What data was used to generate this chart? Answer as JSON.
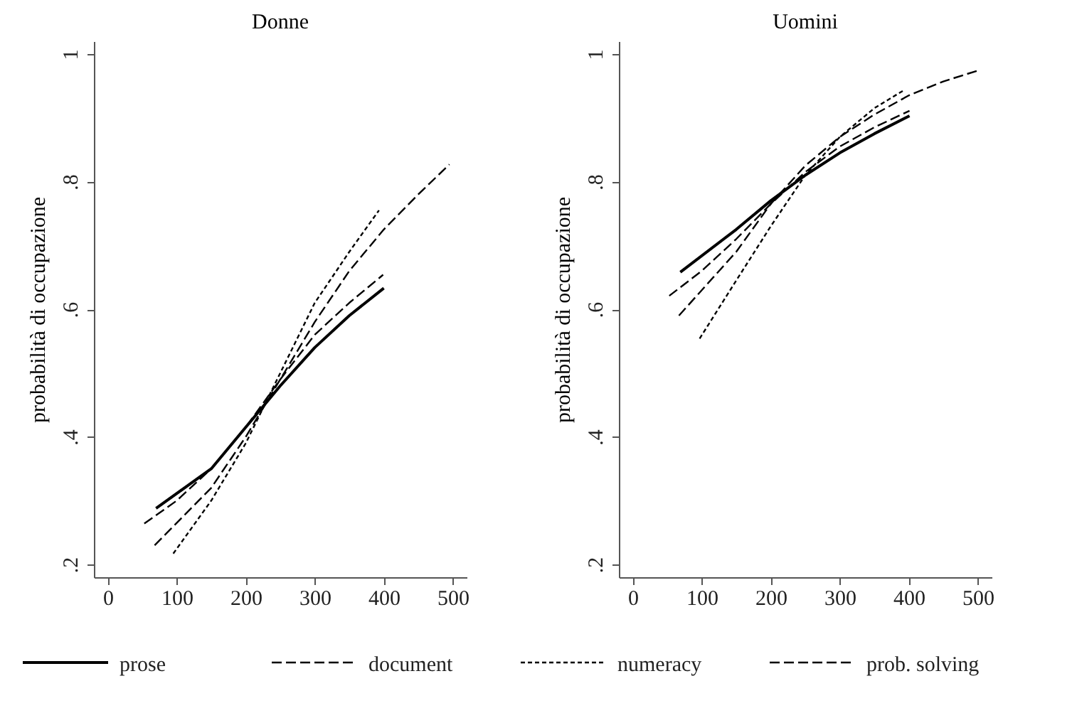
{
  "chart_data": [
    {
      "type": "line",
      "title": "Donne",
      "ylabel": "probabilità di occupazione",
      "xlim": [
        -20,
        520
      ],
      "xticks": [
        0,
        100,
        200,
        300,
        400,
        500
      ],
      "ylim": [
        0.18,
        1.02
      ],
      "yticks": [
        {
          "value": 0.2,
          "label": ".2"
        },
        {
          "value": 0.4,
          "label": ".4"
        },
        {
          "value": 0.6,
          "label": ".6"
        },
        {
          "value": 0.8,
          "label": ".8"
        },
        {
          "value": 1,
          "label": "1"
        }
      ],
      "grid": false,
      "legend": "bottom",
      "series": [
        {
          "name": "prose",
          "color": "#000000",
          "line_style": "solid",
          "x": [
            70,
            150,
            200,
            250,
            300,
            350,
            400
          ],
          "values": [
            0.288,
            0.35,
            0.415,
            0.48,
            0.54,
            0.59,
            0.633
          ]
        },
        {
          "name": "document",
          "color": "#000000",
          "line_style": "dashed",
          "x": [
            53,
            100,
            150,
            200,
            250,
            300,
            350,
            399
          ],
          "values": [
            0.264,
            0.3,
            0.35,
            0.415,
            0.49,
            0.56,
            0.61,
            0.654
          ]
        },
        {
          "name": "numeracy",
          "color": "#000000",
          "line_style": "dotted",
          "x": [
            95,
            150,
            200,
            250,
            300,
            350,
            393
          ],
          "values": [
            0.217,
            0.3,
            0.39,
            0.5,
            0.61,
            0.69,
            0.755
          ]
        },
        {
          "name": "prob. solving",
          "color": "#000000",
          "line_style": "dashed",
          "x": [
            68,
            150,
            200,
            250,
            300,
            350,
            400,
            450,
            495
          ],
          "values": [
            0.23,
            0.32,
            0.4,
            0.49,
            0.58,
            0.66,
            0.725,
            0.78,
            0.827
          ]
        }
      ]
    },
    {
      "type": "line",
      "title": "Uomini",
      "ylabel": "probabilità di occupazione",
      "xlim": [
        -20,
        520
      ],
      "xticks": [
        0,
        100,
        200,
        300,
        400,
        500
      ],
      "ylim": [
        0.18,
        1.02
      ],
      "yticks": [
        {
          "value": 0.2,
          "label": ".2"
        },
        {
          "value": 0.4,
          "label": ".4"
        },
        {
          "value": 0.6,
          "label": ".6"
        },
        {
          "value": 0.8,
          "label": ".8"
        },
        {
          "value": 1,
          "label": "1"
        }
      ],
      "grid": false,
      "legend": "bottom",
      "series": [
        {
          "name": "prose",
          "color": "#000000",
          "line_style": "solid",
          "x": [
            69,
            150,
            200,
            250,
            300,
            350,
            401
          ],
          "values": [
            0.658,
            0.725,
            0.77,
            0.81,
            0.845,
            0.875,
            0.903
          ]
        },
        {
          "name": "document",
          "color": "#000000",
          "line_style": "dashed",
          "x": [
            53,
            100,
            150,
            200,
            250,
            300,
            350,
            401
          ],
          "values": [
            0.621,
            0.66,
            0.71,
            0.765,
            0.815,
            0.855,
            0.885,
            0.911
          ]
        },
        {
          "name": "numeracy",
          "color": "#000000",
          "line_style": "dotted",
          "x": [
            97,
            150,
            200,
            250,
            300,
            350,
            394
          ],
          "values": [
            0.554,
            0.645,
            0.73,
            0.81,
            0.87,
            0.915,
            0.944
          ]
        },
        {
          "name": "prob. solving",
          "color": "#000000",
          "line_style": "dashed",
          "x": [
            67,
            150,
            200,
            250,
            300,
            350,
            400,
            450,
            500
          ],
          "values": [
            0.59,
            0.69,
            0.765,
            0.825,
            0.87,
            0.905,
            0.935,
            0.957,
            0.974
          ]
        }
      ]
    }
  ]
}
